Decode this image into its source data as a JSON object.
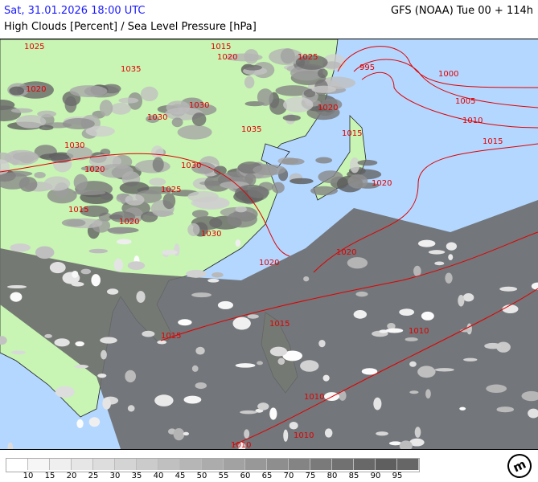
{
  "header": {
    "valid_time": "Sat, 31.01.2026 18:00 UTC",
    "model_run": "GFS (NOAA) Tue 00 + 114h",
    "parameter": "High Clouds [Percent] / Sea Level Pressure [hPa]"
  },
  "map": {
    "colors": {
      "ocean": "#b4d7ff",
      "land": "#c8f5b4",
      "isobar": "#e00000",
      "coast": "#222222"
    },
    "isobar_labels": [
      "1025",
      "1020",
      "1030",
      "1035",
      "1015",
      "1020",
      "1025",
      "1030",
      "1035",
      "1030",
      "1020",
      "1030",
      "1025",
      "1020",
      "1015",
      "1020",
      "1030",
      "1015",
      "995",
      "1000",
      "1005",
      "1010",
      "1015",
      "1020",
      "1020",
      "1020",
      "1015",
      "1015",
      "1010",
      "1010",
      "1010",
      "1010"
    ]
  },
  "legend": {
    "colors": [
      "#ffffff",
      "#f6f6f6",
      "#efefef",
      "#e6e6e6",
      "#dddddd",
      "#d4d4d4",
      "#cbcbcb",
      "#c0c0c0",
      "#b6b6b6",
      "#acacac",
      "#a2a2a2",
      "#989898",
      "#8e8e8e",
      "#848484",
      "#7a7a7a",
      "#717171",
      "#686868",
      "#5f5f5f",
      "#666666"
    ],
    "labels": [
      "10",
      "15",
      "20",
      "25",
      "30",
      "35",
      "40",
      "45",
      "50",
      "55",
      "60",
      "65",
      "70",
      "75",
      "80",
      "85",
      "90",
      "95"
    ]
  },
  "logo": {
    "text": "m"
  }
}
